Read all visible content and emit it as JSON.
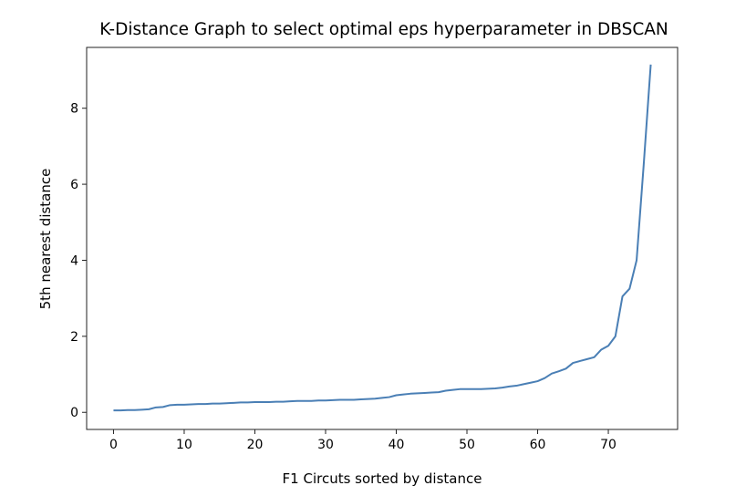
{
  "chart_data": {
    "type": "line",
    "title": "K-Distance Graph to select optimal eps hyperparameter in DBSCAN",
    "xlabel": "F1 Circuts sorted by distance",
    "ylabel": "5th nearest distance",
    "xlim": [
      -3.8,
      79.8
    ],
    "ylim": [
      -0.45,
      9.6
    ],
    "xticks": [
      0,
      10,
      20,
      30,
      40,
      50,
      60,
      70
    ],
    "yticks": [
      0,
      2,
      4,
      6,
      8
    ],
    "grid": false,
    "line_color": "#4a7fb5",
    "x": [
      0,
      1,
      2,
      3,
      4,
      5,
      6,
      7,
      8,
      9,
      10,
      11,
      12,
      13,
      14,
      15,
      16,
      17,
      18,
      19,
      20,
      21,
      22,
      23,
      24,
      25,
      26,
      27,
      28,
      29,
      30,
      31,
      32,
      33,
      34,
      35,
      36,
      37,
      38,
      39,
      40,
      41,
      42,
      43,
      44,
      45,
      46,
      47,
      48,
      49,
      50,
      51,
      52,
      53,
      54,
      55,
      56,
      57,
      58,
      59,
      60,
      61,
      62,
      63,
      64,
      65,
      66,
      67,
      68,
      69,
      70,
      71,
      72,
      73,
      74,
      75,
      76
    ],
    "series": [
      {
        "values": [
          0.05,
          0.05,
          0.06,
          0.06,
          0.07,
          0.08,
          0.13,
          0.14,
          0.19,
          0.2,
          0.2,
          0.21,
          0.22,
          0.22,
          0.23,
          0.23,
          0.24,
          0.25,
          0.26,
          0.26,
          0.27,
          0.27,
          0.27,
          0.28,
          0.28,
          0.29,
          0.3,
          0.3,
          0.3,
          0.31,
          0.31,
          0.32,
          0.33,
          0.33,
          0.33,
          0.34,
          0.35,
          0.36,
          0.38,
          0.4,
          0.45,
          0.47,
          0.49,
          0.5,
          0.51,
          0.52,
          0.53,
          0.57,
          0.59,
          0.61,
          0.61,
          0.61,
          0.61,
          0.62,
          0.63,
          0.65,
          0.68,
          0.7,
          0.74,
          0.78,
          0.82,
          0.9,
          1.02,
          1.08,
          1.15,
          1.3,
          1.35,
          1.4,
          1.45,
          1.65,
          1.75,
          2.0,
          3.05,
          3.25,
          4.0,
          6.5,
          9.15
        ]
      }
    ]
  }
}
